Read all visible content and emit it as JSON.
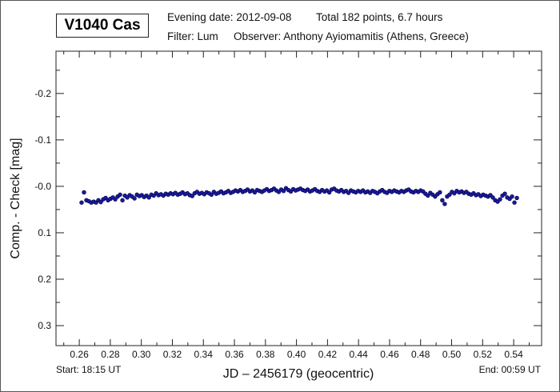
{
  "header": {
    "star_name": "V1040 Cas",
    "evening_date": "Evening date: 2012-09-08",
    "total": "Total 182 points, 6.7 hours",
    "filter": "Filter: Lum",
    "observer": "Observer: Anthony Ayiomamitis (Athens, Greece)"
  },
  "footer": {
    "start": "Start: 18:15 UT",
    "end": "End: 00:59 UT"
  },
  "chart_data": {
    "type": "scatter",
    "xlabel": "JD – 2456179  (geocentric)",
    "ylabel": "Comp. - Check [mag]",
    "xlim": [
      0.245,
      0.558
    ],
    "ylim": [
      -0.291,
      0.343
    ],
    "y_inverted": true,
    "grid": false,
    "x_ticks": [
      "0.26",
      "0.28",
      "0.30",
      "0.32",
      "0.34",
      "0.36",
      "0.38",
      "0.40",
      "0.42",
      "0.44",
      "0.46",
      "0.48",
      "0.50",
      "0.52",
      "0.54"
    ],
    "x_tick_values": [
      0.26,
      0.28,
      0.3,
      0.32,
      0.34,
      0.36,
      0.38,
      0.4,
      0.42,
      0.44,
      0.46,
      0.48,
      0.5,
      0.52,
      0.54
    ],
    "y_ticks": [
      "-0.2",
      "-0.1",
      "-0.0",
      "0.1",
      "0.2",
      "0.3"
    ],
    "y_tick_values": [
      -0.2,
      -0.1,
      0.0,
      0.1,
      0.2,
      0.3
    ],
    "marker_color": "#1a1aa0",
    "x_start": 0.2615,
    "x_step": 0.00155,
    "y": [
      0.035,
      0.013,
      0.03,
      0.032,
      0.035,
      0.033,
      0.035,
      0.03,
      0.034,
      0.028,
      0.025,
      0.03,
      0.027,
      0.024,
      0.028,
      0.022,
      0.018,
      0.03,
      0.02,
      0.024,
      0.019,
      0.022,
      0.026,
      0.018,
      0.021,
      0.019,
      0.023,
      0.02,
      0.024,
      0.018,
      0.02,
      0.015,
      0.019,
      0.017,
      0.02,
      0.016,
      0.018,
      0.015,
      0.017,
      0.014,
      0.018,
      0.016,
      0.013,
      0.017,
      0.015,
      0.019,
      0.021,
      0.015,
      0.012,
      0.016,
      0.014,
      0.017,
      0.013,
      0.015,
      0.018,
      0.012,
      0.016,
      0.014,
      0.011,
      0.015,
      0.013,
      0.01,
      0.014,
      0.012,
      0.009,
      0.011,
      0.008,
      0.012,
      0.01,
      0.007,
      0.011,
      0.009,
      0.013,
      0.008,
      0.01,
      0.012,
      0.009,
      0.006,
      0.01,
      0.008,
      0.005,
      0.009,
      0.012,
      0.007,
      0.01,
      0.004,
      0.008,
      0.011,
      0.006,
      0.009,
      0.007,
      0.005,
      0.008,
      0.01,
      0.007,
      0.011,
      0.009,
      0.006,
      0.01,
      0.012,
      0.008,
      0.011,
      0.009,
      0.013,
      0.007,
      0.005,
      0.009,
      0.011,
      0.008,
      0.012,
      0.01,
      0.014,
      0.009,
      0.011,
      0.013,
      0.01,
      0.012,
      0.009,
      0.013,
      0.011,
      0.014,
      0.01,
      0.012,
      0.015,
      0.011,
      0.008,
      0.012,
      0.014,
      0.01,
      0.012,
      0.009,
      0.011,
      0.013,
      0.01,
      0.012,
      0.009,
      0.007,
      0.011,
      0.013,
      0.01,
      0.012,
      0.009,
      0.011,
      0.016,
      0.02,
      0.014,
      0.018,
      0.022,
      0.017,
      0.013,
      0.03,
      0.038,
      0.022,
      0.018,
      0.012,
      0.015,
      0.01,
      0.013,
      0.011,
      0.014,
      0.012,
      0.016,
      0.018,
      0.015,
      0.019,
      0.017,
      0.021,
      0.018,
      0.02,
      0.022,
      0.019,
      0.024,
      0.03,
      0.033,
      0.028,
      0.02,
      0.016,
      0.024,
      0.027,
      0.022,
      0.035,
      0.025
    ]
  }
}
